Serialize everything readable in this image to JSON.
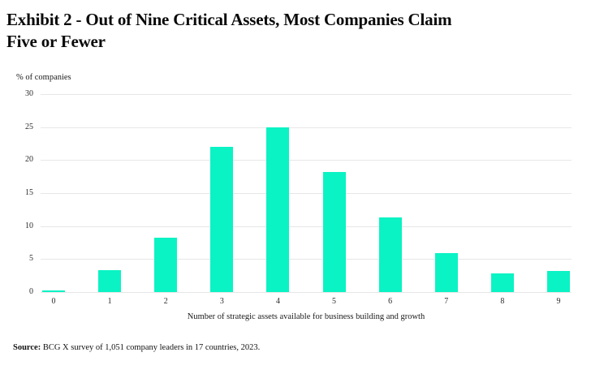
{
  "title_lines": [
    "Exhibit 2 - Out of Nine Critical Assets, Most Companies Claim",
    "Five or Fewer"
  ],
  "chart_data": {
    "type": "bar",
    "title": "Exhibit 2 - Out of Nine Critical Assets, Most Companies Claim Five or Fewer",
    "ylabel": "% of companies",
    "xlabel": "Number of strategic assets available for business building and growth",
    "categories": [
      "0",
      "1",
      "2",
      "3",
      "4",
      "5",
      "6",
      "7",
      "8",
      "9"
    ],
    "values": [
      0.2,
      3.3,
      8.2,
      22,
      25,
      18.2,
      11.3,
      5.9,
      2.8,
      3.2
    ],
    "ylim": [
      0,
      30
    ],
    "yticks": [
      0,
      5,
      10,
      15,
      20,
      25,
      30
    ],
    "grid": true,
    "legend": "none",
    "bar_color": "#0af3c4",
    "gridline_color": "#e7e7e7"
  },
  "source": {
    "label": "Source:",
    "text": "BCG X survey of 1,051 company leaders in 17 countries, 2023."
  }
}
